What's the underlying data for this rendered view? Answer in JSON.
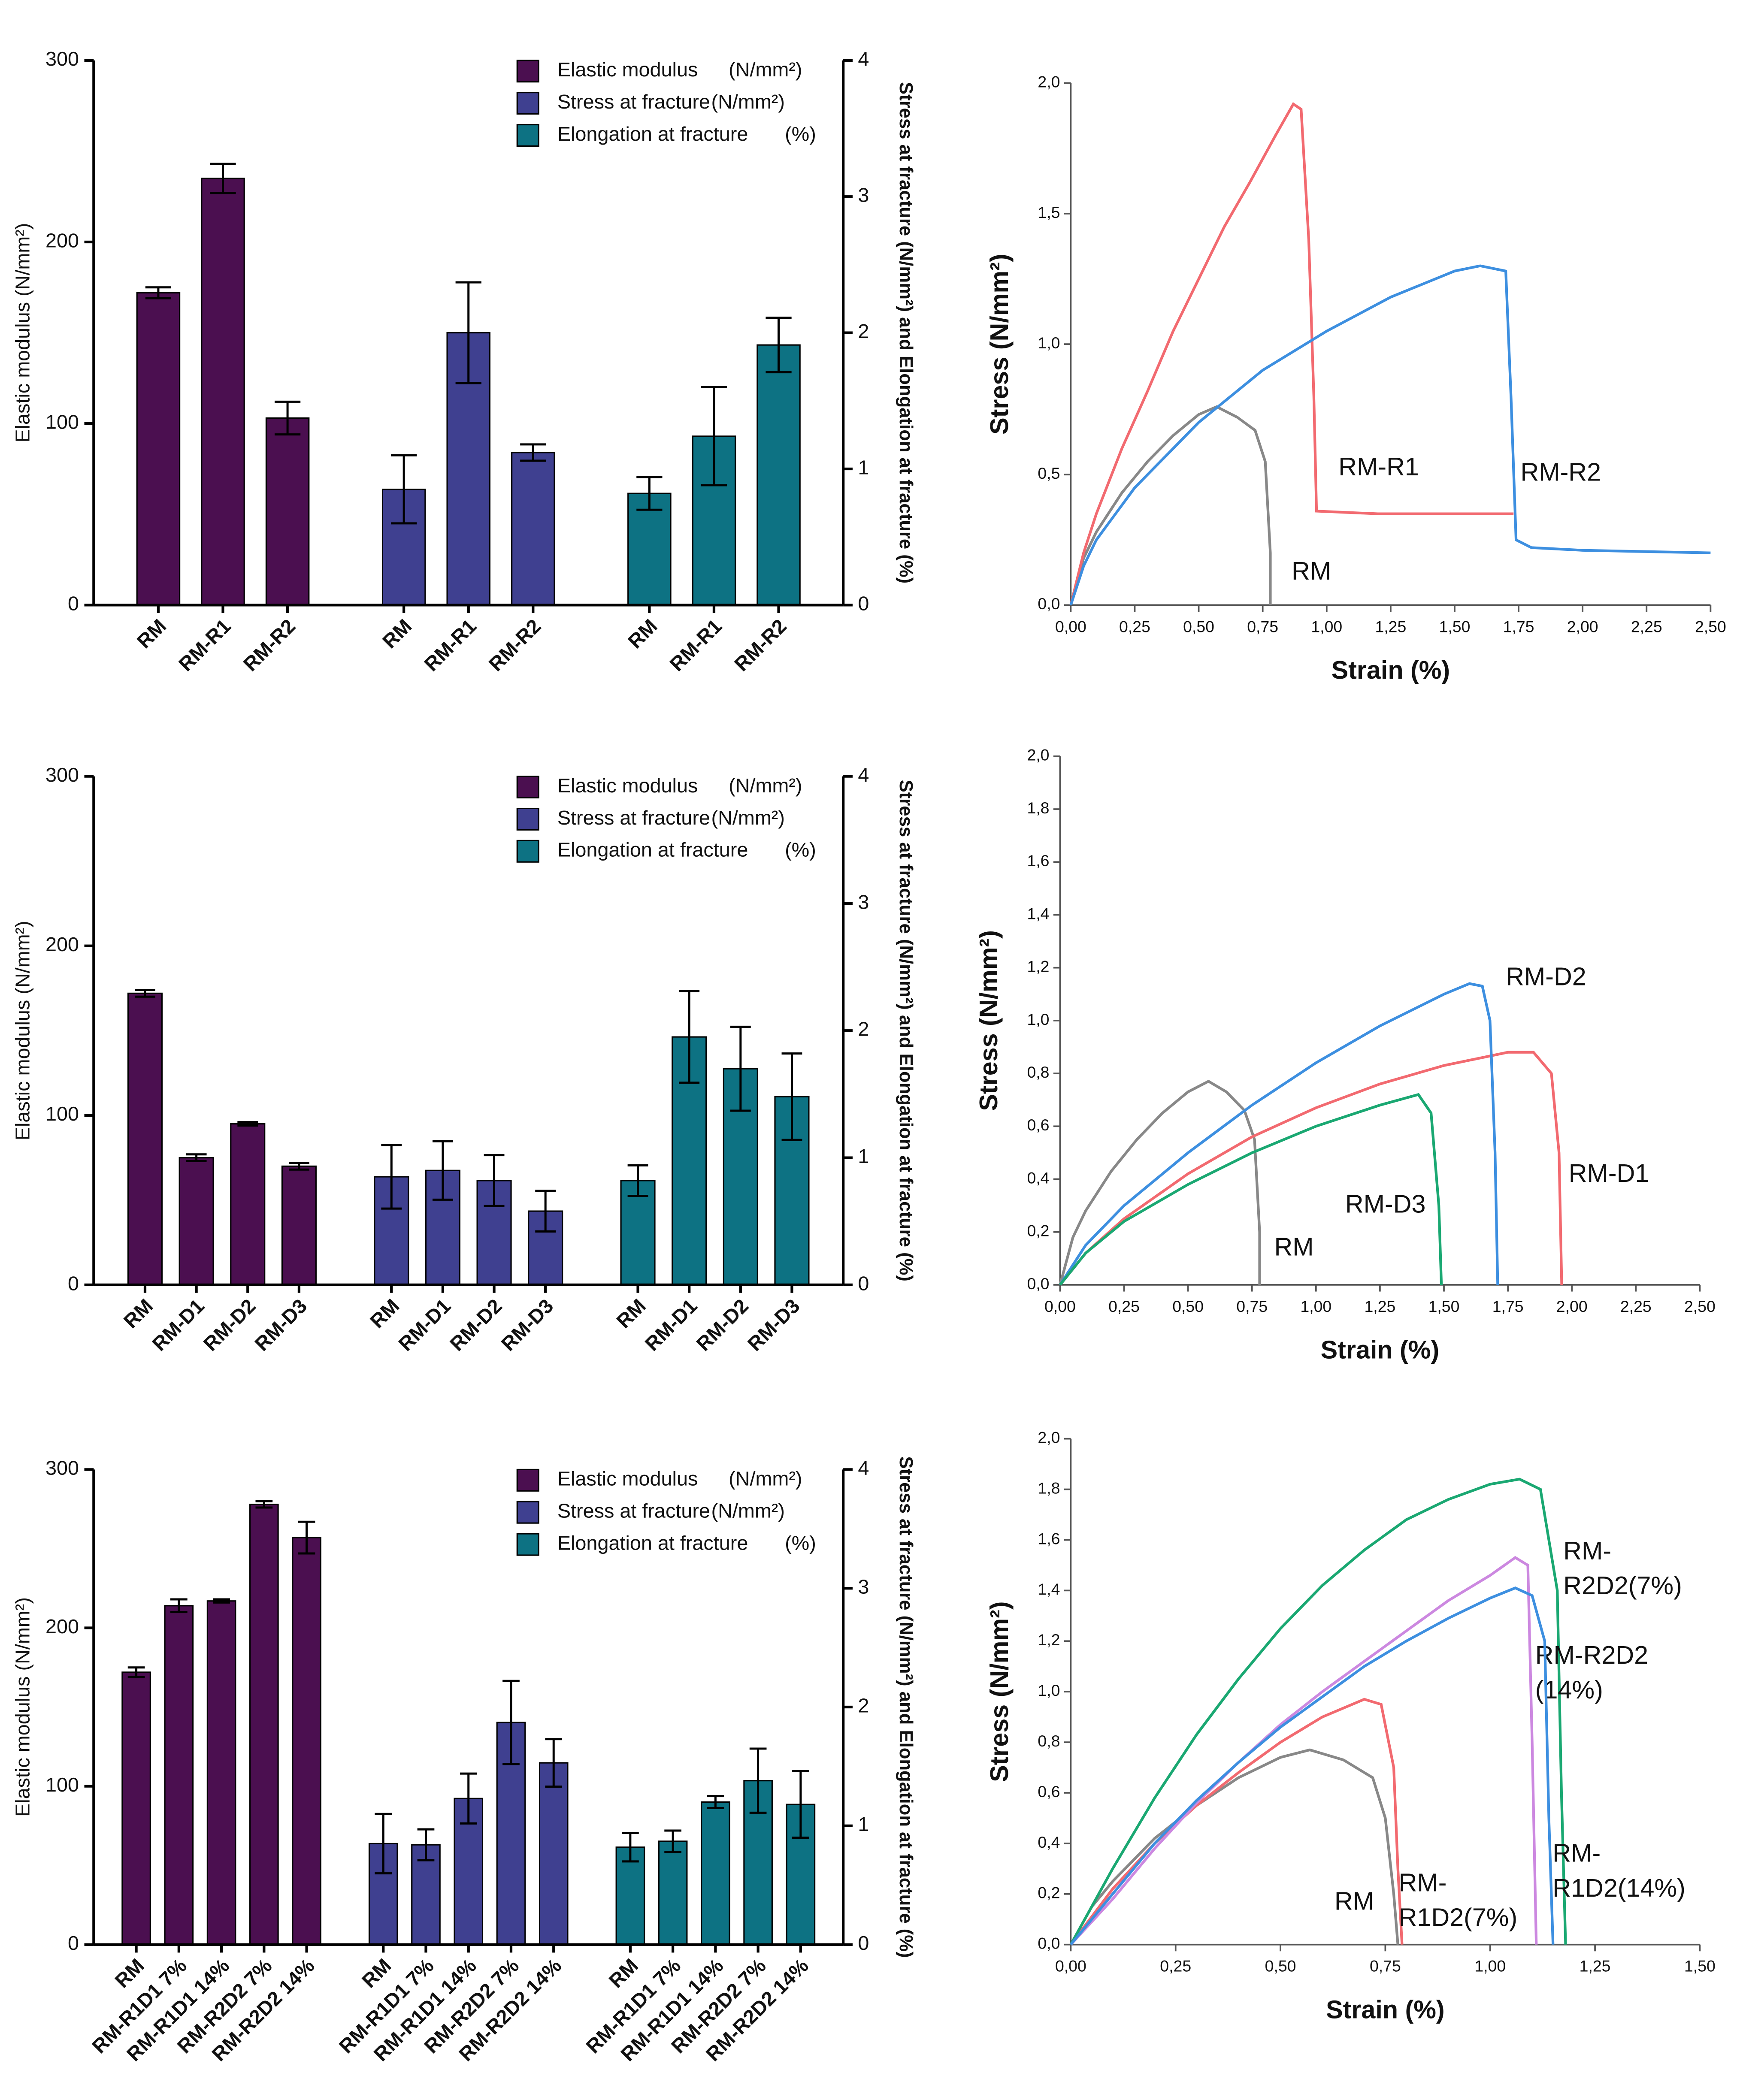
{
  "chart_data": [
    {
      "type": "bar",
      "ylabel": "Elastic modulus (N/mm²)",
      "y2label": "Stress at fracture (N/mm²) and Elongation at fracture (%)",
      "ylim": [
        0,
        300
      ],
      "yticks": [
        0,
        100,
        200,
        300
      ],
      "y2lim": [
        0,
        4
      ],
      "y2ticks": [
        0,
        1,
        2,
        3,
        4
      ],
      "series": [
        {
          "name": "Elastic modulus",
          "unit": "(N/mm²)",
          "color": "#4b0f50",
          "axis": "y",
          "categories": [
            "RM",
            "RM-R1",
            "RM-R2"
          ],
          "values": [
            172,
            235,
            103
          ],
          "errors": [
            3,
            8,
            9
          ]
        },
        {
          "name": "Stress at fracture",
          "unit": "(N/mm²)",
          "color": "#3f4090",
          "axis": "y2",
          "categories": [
            "RM",
            "RM-R1",
            "RM-R2"
          ],
          "values": [
            0.85,
            2.0,
            1.12
          ],
          "errors": [
            0.25,
            0.37,
            0.06
          ]
        },
        {
          "name": "Elongation at fracture",
          "unit": "(%)",
          "color": "#0d7283",
          "axis": "y2",
          "categories": [
            "RM",
            "RM-R1",
            "RM-R2"
          ],
          "values": [
            0.82,
            1.24,
            1.91
          ],
          "errors": [
            0.12,
            0.36,
            0.2
          ]
        }
      ]
    },
    {
      "type": "line",
      "xlabel": "Strain (%)",
      "ylabel": "Stress (N/mm²)",
      "xlim": [
        0,
        2.5
      ],
      "xticks": [
        {
          "value": 0,
          "label": "0,00"
        },
        {
          "value": 0.25,
          "label": "0,25"
        },
        {
          "value": 0.5,
          "label": "0,50"
        },
        {
          "value": 0.75,
          "label": "0,75"
        },
        {
          "value": 1,
          "label": "1,00"
        },
        {
          "value": 1.25,
          "label": "1,25"
        },
        {
          "value": 1.5,
          "label": "1,50"
        },
        {
          "value": 1.75,
          "label": "1,75"
        },
        {
          "value": 2,
          "label": "2,00"
        },
        {
          "value": 2.25,
          "label": "2,25"
        },
        {
          "value": 2.5,
          "label": "2,50"
        }
      ],
      "ylim": [
        0,
        2
      ],
      "yticks": [
        {
          "value": 0,
          "label": "0,0"
        },
        {
          "value": 0.5,
          "label": "0,5"
        },
        {
          "value": 1,
          "label": "1,0"
        },
        {
          "value": 1.5,
          "label": "1,5"
        },
        {
          "value": 2,
          "label": "2,0"
        }
      ],
      "series": [
        {
          "name": "RM",
          "color": "#888888",
          "x": [
            0,
            0.05,
            0.1,
            0.2,
            0.3,
            0.4,
            0.5,
            0.57,
            0.65,
            0.72,
            0.76,
            0.78,
            0.78
          ],
          "values": [
            0,
            0.18,
            0.28,
            0.43,
            0.55,
            0.65,
            0.73,
            0.76,
            0.72,
            0.67,
            0.55,
            0.2,
            0
          ]
        },
        {
          "name": "RM-R1",
          "color": "#f26a70",
          "x": [
            0,
            0.05,
            0.1,
            0.2,
            0.3,
            0.4,
            0.5,
            0.6,
            0.7,
            0.8,
            0.87,
            0.9,
            0.93,
            0.95,
            0.96,
            1.2,
            1.5,
            1.73
          ],
          "values": [
            0,
            0.2,
            0.35,
            0.6,
            0.82,
            1.05,
            1.25,
            1.45,
            1.62,
            1.8,
            1.92,
            1.9,
            1.4,
            0.8,
            0.36,
            0.35,
            0.35,
            0.35
          ]
        },
        {
          "name": "RM-R2",
          "color": "#3d8fe0",
          "x": [
            0,
            0.05,
            0.1,
            0.25,
            0.5,
            0.75,
            1.0,
            1.25,
            1.5,
            1.6,
            1.7,
            1.72,
            1.74,
            1.8,
            2.0,
            2.5
          ],
          "values": [
            0,
            0.15,
            0.25,
            0.45,
            0.7,
            0.9,
            1.05,
            1.18,
            1.28,
            1.3,
            1.28,
            0.8,
            0.25,
            0.22,
            0.21,
            0.2
          ]
        }
      ]
    },
    {
      "type": "bar",
      "ylabel": "Elastic modulus (N/mm²)",
      "y2label": "Stress at fracture (N/mm²) and Elongation at fracture (%)",
      "ylim": [
        0,
        300
      ],
      "yticks": [
        0,
        100,
        200,
        300
      ],
      "y2lim": [
        0,
        4
      ],
      "y2ticks": [
        0,
        1,
        2,
        3,
        4
      ],
      "series": [
        {
          "name": "Elastic modulus",
          "unit": "(N/mm²)",
          "color": "#4b0f50",
          "axis": "y",
          "categories": [
            "RM",
            "RM-D1",
            "RM-D2",
            "RM-D3"
          ],
          "values": [
            172,
            75,
            95,
            70
          ],
          "errors": [
            2,
            2,
            1,
            2
          ]
        },
        {
          "name": "Stress at fracture",
          "unit": "(N/mm²)",
          "color": "#3f4090",
          "axis": "y2",
          "categories": [
            "RM",
            "RM-D1",
            "RM-D2",
            "RM-D3"
          ],
          "values": [
            0.85,
            0.9,
            0.82,
            0.58
          ],
          "errors": [
            0.25,
            0.23,
            0.2,
            0.16
          ]
        },
        {
          "name": "Elongation at fracture",
          "unit": "(%)",
          "color": "#0d7283",
          "axis": "y2",
          "categories": [
            "RM",
            "RM-D1",
            "RM-D2",
            "RM-D3"
          ],
          "values": [
            0.82,
            1.95,
            1.7,
            1.48
          ],
          "errors": [
            0.12,
            0.36,
            0.33,
            0.34
          ]
        }
      ]
    },
    {
      "type": "line",
      "xlabel": "Strain (%)",
      "ylabel": "Stress (N/mm²)",
      "xlim": [
        0,
        2.5
      ],
      "xticks": [
        {
          "value": 0,
          "label": "0,00"
        },
        {
          "value": 0.25,
          "label": "0,25"
        },
        {
          "value": 0.5,
          "label": "0,50"
        },
        {
          "value": 0.75,
          "label": "0,75"
        },
        {
          "value": 1,
          "label": "1,00"
        },
        {
          "value": 1.25,
          "label": "1,25"
        },
        {
          "value": 1.5,
          "label": "1,50"
        },
        {
          "value": 1.75,
          "label": "1,75"
        },
        {
          "value": 2,
          "label": "2,00"
        },
        {
          "value": 2.25,
          "label": "2,25"
        },
        {
          "value": 2.5,
          "label": "2,50"
        }
      ],
      "ylim": [
        0,
        2
      ],
      "yticks": [
        {
          "value": 0,
          "label": "0,0"
        },
        {
          "value": 0.2,
          "label": "0,2"
        },
        {
          "value": 0.4,
          "label": "0,4"
        },
        {
          "value": 0.6,
          "label": "0,6"
        },
        {
          "value": 0.8,
          "label": "0,8"
        },
        {
          "value": 1,
          "label": "1,0"
        },
        {
          "value": 1.2,
          "label": "1,2"
        },
        {
          "value": 1.4,
          "label": "1,4"
        },
        {
          "value": 1.6,
          "label": "1,6"
        },
        {
          "value": 1.8,
          "label": "1,8"
        },
        {
          "value": 2,
          "label": "2,0"
        }
      ],
      "series": [
        {
          "name": "RM",
          "color": "#888888",
          "x": [
            0,
            0.05,
            0.1,
            0.2,
            0.3,
            0.4,
            0.5,
            0.58,
            0.65,
            0.72,
            0.76,
            0.78,
            0.78
          ],
          "values": [
            0,
            0.18,
            0.28,
            0.43,
            0.55,
            0.65,
            0.73,
            0.77,
            0.73,
            0.66,
            0.55,
            0.2,
            0
          ]
        },
        {
          "name": "RM-D1",
          "color": "#f26a70",
          "x": [
            0,
            0.1,
            0.25,
            0.5,
            0.75,
            1.0,
            1.25,
            1.5,
            1.75,
            1.85,
            1.92,
            1.95,
            1.96
          ],
          "values": [
            0,
            0.12,
            0.25,
            0.42,
            0.56,
            0.67,
            0.76,
            0.83,
            0.88,
            0.88,
            0.8,
            0.5,
            0
          ]
        },
        {
          "name": "RM-D2",
          "color": "#3d8fe0",
          "x": [
            0,
            0.1,
            0.25,
            0.5,
            0.75,
            1.0,
            1.25,
            1.5,
            1.6,
            1.65,
            1.68,
            1.7,
            1.71
          ],
          "values": [
            0,
            0.15,
            0.3,
            0.5,
            0.68,
            0.84,
            0.98,
            1.1,
            1.14,
            1.13,
            1.0,
            0.5,
            0
          ]
        },
        {
          "name": "RM-D3",
          "color": "#1aa872",
          "x": [
            0,
            0.1,
            0.25,
            0.5,
            0.75,
            1.0,
            1.25,
            1.4,
            1.45,
            1.48,
            1.49
          ],
          "values": [
            0,
            0.12,
            0.24,
            0.38,
            0.5,
            0.6,
            0.68,
            0.72,
            0.65,
            0.3,
            0
          ]
        }
      ]
    },
    {
      "type": "bar",
      "ylabel": "Elastic modulus (N/mm²)",
      "y2label": "Stress at fracture (N/mm²) and Elongation at fracture (%)",
      "ylim": [
        0,
        300
      ],
      "yticks": [
        0,
        100,
        200,
        300
      ],
      "y2lim": [
        0,
        4
      ],
      "y2ticks": [
        0,
        1,
        2,
        3,
        4
      ],
      "series": [
        {
          "name": "Elastic modulus",
          "unit": "(N/mm²)",
          "color": "#4b0f50",
          "axis": "y",
          "categories": [
            "RM",
            "RM-R1D1 7%",
            "RM-R1D1 14%",
            "RM-R2D2 7%",
            "RM-R2D2 14%"
          ],
          "values": [
            172,
            214,
            217,
            278,
            257
          ],
          "errors": [
            3,
            4,
            1,
            2,
            10
          ]
        },
        {
          "name": "Stress at fracture",
          "unit": "(N/mm²)",
          "color": "#3f4090",
          "axis": "y2",
          "categories": [
            "RM",
            "RM-R1D1 7%",
            "RM-R1D1 14%",
            "RM-R2D2 7%",
            "RM-R2D2 14%"
          ],
          "values": [
            0.85,
            0.84,
            1.23,
            1.87,
            1.53
          ],
          "errors": [
            0.25,
            0.13,
            0.21,
            0.35,
            0.2
          ]
        },
        {
          "name": "Elongation at fracture",
          "unit": "(%)",
          "color": "#0d7283",
          "axis": "y2",
          "categories": [
            "RM",
            "RM-R1D1 7%",
            "RM-R1D1 14%",
            "RM-R2D2 7%",
            "RM-R2D2 14%"
          ],
          "values": [
            0.82,
            0.87,
            1.2,
            1.38,
            1.18
          ],
          "errors": [
            0.12,
            0.09,
            0.05,
            0.27,
            0.28
          ]
        }
      ]
    },
    {
      "type": "line",
      "xlabel": "Strain (%)",
      "ylabel": "Stress (N/mm²)",
      "xlim": [
        0,
        1.5
      ],
      "xticks": [
        {
          "value": 0,
          "label": "0,00"
        },
        {
          "value": 0.25,
          "label": "0,25"
        },
        {
          "value": 0.5,
          "label": "0,50"
        },
        {
          "value": 0.75,
          "label": "0,75"
        },
        {
          "value": 1,
          "label": "1,00"
        },
        {
          "value": 1.25,
          "label": "1,25"
        },
        {
          "value": 1.5,
          "label": "1,50"
        }
      ],
      "ylim": [
        0,
        2
      ],
      "yticks": [
        {
          "value": 0,
          "label": "0,0"
        },
        {
          "value": 0.2,
          "label": "0,2"
        },
        {
          "value": 0.4,
          "label": "0,4"
        },
        {
          "value": 0.6,
          "label": "0,6"
        },
        {
          "value": 0.8,
          "label": "0,8"
        },
        {
          "value": 1,
          "label": "1,0"
        },
        {
          "value": 1.2,
          "label": "1,2"
        },
        {
          "value": 1.4,
          "label": "1,4"
        },
        {
          "value": 1.6,
          "label": "1,6"
        },
        {
          "value": 1.8,
          "label": "1,8"
        },
        {
          "value": 2,
          "label": "2,0"
        }
      ],
      "series": [
        {
          "name": "RM",
          "color": "#888888",
          "x": [
            0,
            0.05,
            0.1,
            0.2,
            0.3,
            0.4,
            0.5,
            0.57,
            0.65,
            0.72,
            0.75,
            0.77,
            0.78
          ],
          "values": [
            0,
            0.15,
            0.25,
            0.42,
            0.55,
            0.66,
            0.74,
            0.77,
            0.73,
            0.66,
            0.5,
            0.2,
            0
          ]
        },
        {
          "name": "RM-R1D2(7%)",
          "color": "#f26a70",
          "x": [
            0,
            0.1,
            0.2,
            0.3,
            0.4,
            0.5,
            0.6,
            0.7,
            0.74,
            0.77,
            0.78,
            0.79
          ],
          "values": [
            0,
            0.22,
            0.4,
            0.55,
            0.68,
            0.8,
            0.9,
            0.97,
            0.95,
            0.7,
            0.3,
            0
          ]
        },
        {
          "name": "RM-R2D2(7%)",
          "color": "#1aa872",
          "x": [
            0,
            0.1,
            0.2,
            0.3,
            0.4,
            0.5,
            0.6,
            0.7,
            0.8,
            0.9,
            1.0,
            1.07,
            1.12,
            1.16,
            1.17,
            1.18
          ],
          "values": [
            0,
            0.3,
            0.58,
            0.83,
            1.05,
            1.25,
            1.42,
            1.56,
            1.68,
            1.76,
            1.82,
            1.84,
            1.8,
            1.4,
            0.6,
            0
          ]
        },
        {
          "name": "RM-R2D2(14%)",
          "color": "#cc88e0",
          "x": [
            0,
            0.1,
            0.2,
            0.3,
            0.4,
            0.5,
            0.6,
            0.7,
            0.8,
            0.9,
            1.0,
            1.06,
            1.09,
            1.1,
            1.11
          ],
          "values": [
            0,
            0.18,
            0.38,
            0.56,
            0.72,
            0.87,
            1.0,
            1.12,
            1.24,
            1.36,
            1.46,
            1.53,
            1.5,
            0.8,
            0
          ]
        },
        {
          "name": "RM-R1D2(14%)",
          "color": "#3d8fe0",
          "x": [
            0,
            0.1,
            0.2,
            0.3,
            0.4,
            0.5,
            0.6,
            0.7,
            0.8,
            0.9,
            1.0,
            1.06,
            1.1,
            1.13,
            1.14,
            1.15
          ],
          "values": [
            0,
            0.2,
            0.4,
            0.57,
            0.72,
            0.86,
            0.98,
            1.1,
            1.2,
            1.29,
            1.37,
            1.41,
            1.38,
            1.2,
            0.5,
            0
          ]
        }
      ]
    }
  ]
}
